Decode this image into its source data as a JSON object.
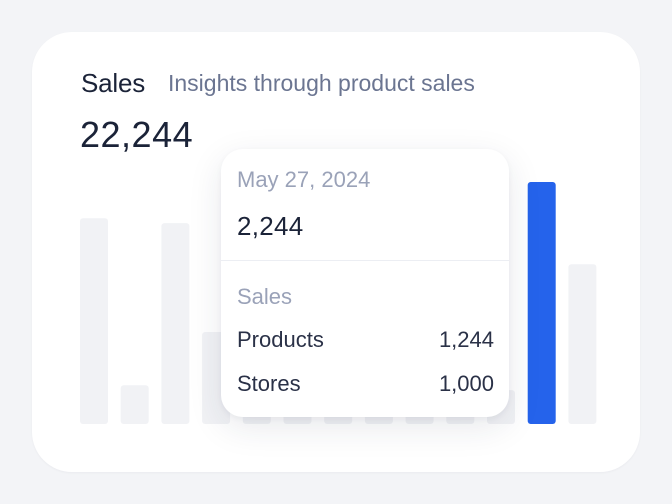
{
  "header": {
    "title": "Sales",
    "subtitle": "Insights through product sales",
    "total": "22,244"
  },
  "tooltip": {
    "date": "May 27, 2024",
    "value": "2,244",
    "section_label": "Sales",
    "rows": [
      {
        "label": "Products",
        "value": "1,244"
      },
      {
        "label": "Stores",
        "value": "1,000"
      }
    ]
  },
  "colors": {
    "accent": "#2563eb",
    "bar_inactive": "#f1f2f5",
    "text_primary": "#1b2338",
    "text_muted": "#9aa2b8"
  },
  "chart_data": {
    "type": "bar",
    "series": [
      {
        "values": [
          0.85,
          0.16,
          0.83,
          0.38,
          0.2,
          0.15,
          0.14,
          0.14,
          0.14,
          0.14,
          0.14,
          1.0,
          0.66
        ]
      }
    ],
    "highlighted_index": 11
  }
}
